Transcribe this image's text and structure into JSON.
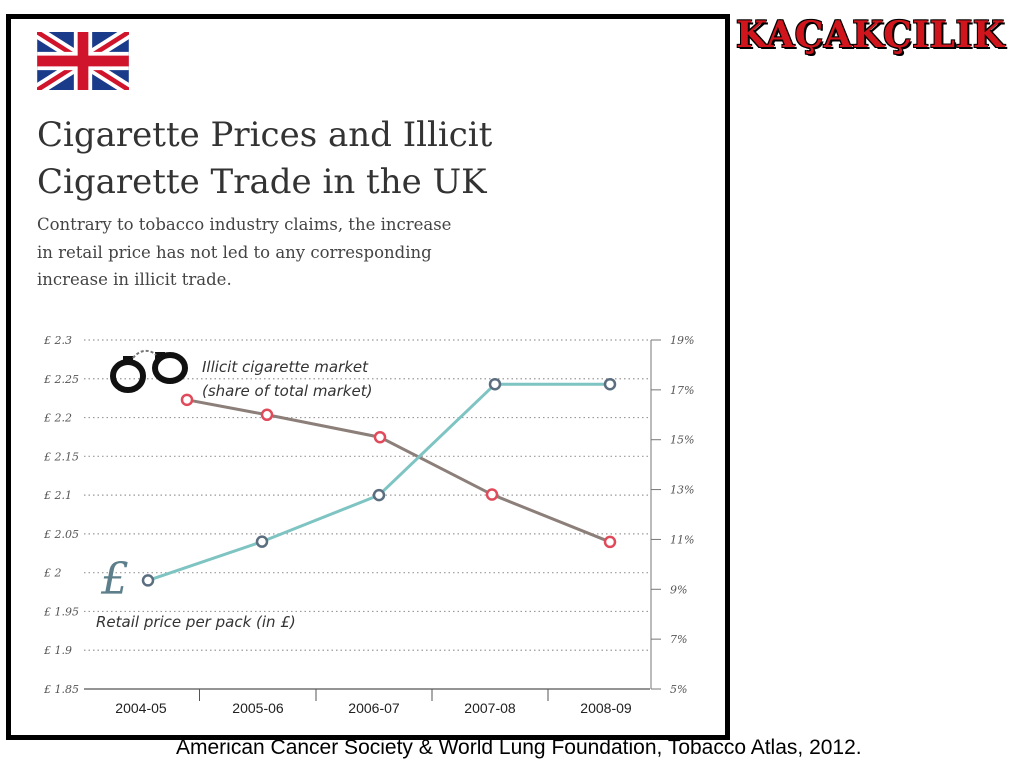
{
  "title_lines": [
    "Cigarette Prices and Illicit",
    "Cigarette Trade in the UK"
  ],
  "subtitle_lines": [
    "Contrary to tobacco industry claims, the increase",
    "in retail price has not led to any corresponding",
    "increase in illicit trade."
  ],
  "stamp": "KAÇAKÇILIK",
  "citation": "American Cancer Society & World Lung Foundation, Tobacco Atlas, 2012.",
  "icons": {
    "flag": "uk-flag-icon",
    "illicit": "handcuffs-icon",
    "price": "pound-sign-icon"
  },
  "pound_glyph": "£",
  "chart_data": {
    "type": "line",
    "categories": [
      "2004-05",
      "2005-06",
      "2006-07",
      "2007-08",
      "2008-09"
    ],
    "y_left": {
      "ticks": [
        "£ 2.3",
        "£ 2.25",
        "£ 2.2",
        "£ 2.15",
        "£ 2.1",
        "£ 2.05",
        "£ 2",
        "£ 1.95",
        "£ 1.9",
        "£ 1.85"
      ],
      "range": [
        1.85,
        2.3
      ]
    },
    "y_right": {
      "ticks": [
        "19%",
        "17%",
        "15%",
        "13%",
        "11%",
        "9%",
        "7%",
        "5%"
      ],
      "range": [
        5,
        19
      ]
    },
    "grid": "dotted horizontal",
    "series": [
      {
        "name_lines": [
          "Illicit cigarette market",
          "(share of total market)"
        ],
        "axis": "right",
        "unit": "%",
        "color": "#8c7f79",
        "marker_color": "#e04a5a",
        "values": [
          16.6,
          16.0,
          15.1,
          12.8,
          10.9
        ]
      },
      {
        "name_lines": [
          "Retail price per pack (in £)"
        ],
        "axis": "left",
        "unit": "£",
        "color": "#7ec4c2",
        "marker_color": "#5b6e80",
        "values": [
          1.99,
          2.04,
          2.1,
          2.243,
          2.243
        ]
      }
    ]
  }
}
